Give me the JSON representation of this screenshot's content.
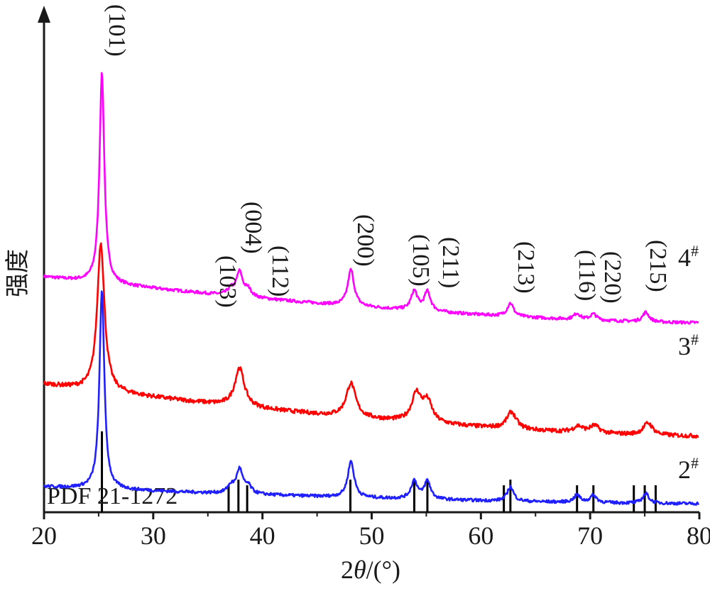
{
  "chart_data": {
    "type": "line",
    "xlabel": "2θ/(°)",
    "ylabel": "强度",
    "xlim": [
      20,
      80
    ],
    "x_ticks": [
      "20",
      "30",
      "40",
      "50",
      "60",
      "70",
      "80"
    ],
    "y_ticks": [],
    "grid": false,
    "legend": "none",
    "series": [
      {
        "name": "4#",
        "color": "#ff00ff",
        "baseline_start": 1.94,
        "baseline_end": 1.56,
        "peaks": [
          {
            "x": 25.3,
            "height": 1.74
          },
          {
            "x": 37.1,
            "height": 0.05
          },
          {
            "x": 37.9,
            "height": 0.2
          },
          {
            "x": 38.7,
            "height": 0.06
          },
          {
            "x": 48.1,
            "height": 0.3
          },
          {
            "x": 53.9,
            "height": 0.16
          },
          {
            "x": 55.1,
            "height": 0.16
          },
          {
            "x": 62.7,
            "height": 0.11
          },
          {
            "x": 68.8,
            "height": 0.05
          },
          {
            "x": 70.3,
            "height": 0.05
          },
          {
            "x": 75.1,
            "height": 0.08
          }
        ]
      },
      {
        "name": "3#",
        "color": "#ff0000",
        "baseline_start": 1.05,
        "baseline_end": 0.62,
        "peaks": [
          {
            "x": 25.2,
            "height": 1.23
          },
          {
            "x": 37.9,
            "height": 0.32
          },
          {
            "x": 48.1,
            "height": 0.28
          },
          {
            "x": 54.1,
            "height": 0.23
          },
          {
            "x": 55.1,
            "height": 0.17
          },
          {
            "x": 62.8,
            "height": 0.14
          },
          {
            "x": 68.9,
            "height": 0.05
          },
          {
            "x": 70.4,
            "height": 0.06
          },
          {
            "x": 75.3,
            "height": 0.1
          }
        ]
      },
      {
        "name": "2#",
        "color": "#1f1fff",
        "baseline_start": 0.2,
        "baseline_end": 0.06,
        "peaks": [
          {
            "x": 25.3,
            "height": 1.65
          },
          {
            "x": 37.1,
            "height": 0.06
          },
          {
            "x": 37.9,
            "height": 0.2
          },
          {
            "x": 38.7,
            "height": 0.06
          },
          {
            "x": 48.1,
            "height": 0.3
          },
          {
            "x": 53.9,
            "height": 0.15
          },
          {
            "x": 55.1,
            "height": 0.15
          },
          {
            "x": 62.7,
            "height": 0.12
          },
          {
            "x": 68.8,
            "height": 0.06
          },
          {
            "x": 70.3,
            "height": 0.06
          },
          {
            "x": 75.1,
            "height": 0.08
          }
        ]
      }
    ],
    "reference": {
      "name": "PDF 21-1272",
      "color": "#000000",
      "lines": [
        {
          "x": 25.3,
          "intensity": 1.0
        },
        {
          "x": 36.9,
          "intensity": 0.1
        },
        {
          "x": 37.8,
          "intensity": 0.2
        },
        {
          "x": 38.6,
          "intensity": 0.1
        },
        {
          "x": 48.05,
          "intensity": 0.35
        },
        {
          "x": 53.9,
          "intensity": 0.2
        },
        {
          "x": 55.1,
          "intensity": 0.2
        },
        {
          "x": 62.1,
          "intensity": 0.04
        },
        {
          "x": 62.7,
          "intensity": 0.14
        },
        {
          "x": 68.8,
          "intensity": 0.06
        },
        {
          "x": 70.3,
          "intensity": 0.07
        },
        {
          "x": 74.0,
          "intensity": 0.01
        },
        {
          "x": 75.0,
          "intensity": 0.1
        },
        {
          "x": 76.0,
          "intensity": 0.04
        }
      ]
    },
    "annotations": [
      {
        "text": "(101)",
        "x": 25.3
      },
      {
        "text": "(103)",
        "x": 36.0
      },
      {
        "text": "(004)",
        "x": 37.9
      },
      {
        "text": "(112)",
        "x": 39.7
      },
      {
        "text": "(200)",
        "x": 48.1
      },
      {
        "text": "(105)",
        "x": 53.6
      },
      {
        "text": "(211)",
        "x": 56.0
      },
      {
        "text": "(213)",
        "x": 63.1
      },
      {
        "text": "(116)",
        "x": 69.0
      },
      {
        "text": "(220)",
        "x": 71.0
      },
      {
        "text": "(215)",
        "x": 75.0
      }
    ],
    "series_labels": [
      {
        "base": "4",
        "sup": "#"
      },
      {
        "base": "3",
        "sup": "#"
      },
      {
        "base": "2",
        "sup": "#"
      }
    ]
  }
}
